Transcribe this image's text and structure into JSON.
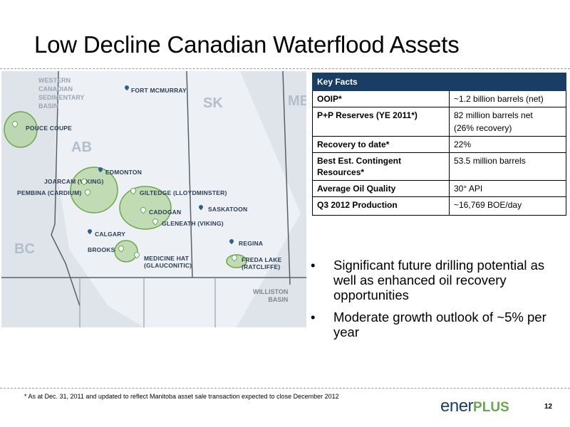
{
  "slide": {
    "title": "Low Decline Canadian Waterflood Assets",
    "page_number": "12",
    "footnote": "* As at Dec. 31, 2011 and updated to reflect Manitoba asset sale transaction expected to close December 2012"
  },
  "logo": {
    "part1": "ener",
    "part2": "PLUS"
  },
  "map": {
    "regions": {
      "wcsb": [
        "WESTERN",
        "CANADIAN",
        "SEDIMENTARY",
        "BASIN"
      ],
      "ab": "AB",
      "sk": "SK",
      "mb": "MB",
      "bc": "BC",
      "williston": [
        "WILLISTON",
        "BASIN"
      ]
    },
    "cities": {
      "fort_mcmurray": "FORT MCMURRAY",
      "edmonton": "EDMONTON",
      "saskatoon": "SASKATOON",
      "calgary": "CALGARY",
      "regina": "REGINA"
    },
    "assets": {
      "pouce_coupe": "POUCE COUPE",
      "joarcam": "JOARCAM (VIKING)",
      "pembina": "PEMBINA (CARDIUM)",
      "giltedge": "GILTEDGE (LLOYDMINSTER)",
      "cadogan": "CADOGAN",
      "gleneath": "GLENEATH (VIKING)",
      "brooks": "BROOKS",
      "medicine_hat": [
        "MEDICINE HAT",
        "(GLAUCONITIC)"
      ],
      "freda_lake": [
        "FREDA LAKE",
        "(RATCLIFFE)"
      ]
    },
    "colors": {
      "land": "#dfe4ea",
      "highlight": "#6aa84f",
      "pin": "#2f5f8a"
    }
  },
  "key_facts": {
    "header": "Key Facts",
    "rows": [
      {
        "label": "OOIP*",
        "value": "~1.2 billion barrels (net)"
      },
      {
        "label": "P+P Reserves (YE 2011*)",
        "value": "82 million barrels net",
        "value2": "(26% recovery)"
      },
      {
        "label": "Recovery to date*",
        "value": "22%"
      },
      {
        "label": "Best Est. Contingent Resources*",
        "value": "53.5 million barrels"
      },
      {
        "label": "Average Oil Quality",
        "value": "30° API"
      },
      {
        "label": "Q3 2012 Production",
        "value": "~16,769 BOE/day"
      }
    ]
  },
  "bullets": [
    "Significant future drilling potential as well as enhanced oil recovery opportunities",
    "Moderate growth outlook of ~5% per year"
  ]
}
